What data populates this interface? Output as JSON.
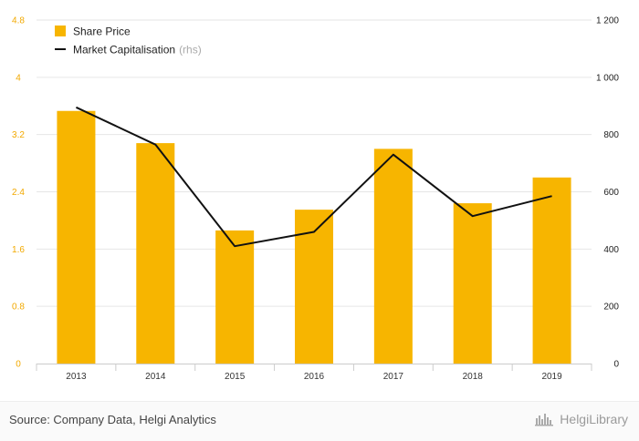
{
  "colors": {
    "bar": "#f7b500",
    "line": "#111111",
    "left_axis_text": "#f2a900",
    "right_axis_text": "#222222",
    "grid": "#e6e6e6"
  },
  "chart_data": {
    "type": "bar",
    "categories": [
      "2013",
      "2014",
      "2015",
      "2016",
      "2017",
      "2018",
      "2019"
    ],
    "series": [
      {
        "name": "Share Price",
        "type": "bar",
        "axis": "left",
        "values": [
          3.53,
          3.08,
          1.86,
          2.15,
          3.0,
          2.24,
          2.6
        ]
      },
      {
        "name": "Market Capitalisation",
        "type": "line",
        "axis": "right",
        "values": [
          895,
          765,
          410,
          460,
          730,
          515,
          585
        ]
      }
    ],
    "legend": {
      "position": "top-left",
      "items": [
        {
          "label": "Share Price",
          "suffix": ""
        },
        {
          "label": "Market Capitalisation",
          "suffix": "(rhs)"
        }
      ]
    },
    "y_left": {
      "ylim": [
        0,
        4.8
      ],
      "ticks": [
        "0",
        "0.8",
        "1.6",
        "2.4",
        "3.2",
        "4",
        "4.8"
      ]
    },
    "y_right": {
      "ylim": [
        0,
        1200
      ],
      "ticks": [
        "0",
        "200",
        "400",
        "600",
        "800",
        "1 000",
        "1 200"
      ]
    },
    "grid": true
  },
  "footer": {
    "source": "Source: Company Data, Helgi Analytics",
    "brand": "HelgiLibrary",
    "brand_icon": "helgi-library-icon"
  }
}
